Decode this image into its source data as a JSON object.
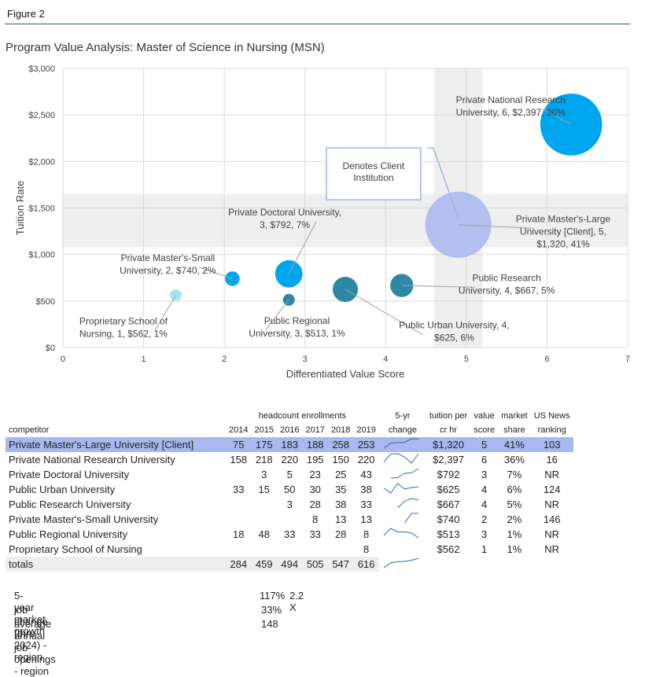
{
  "figure_label": "Figure 2",
  "chart_title": "Program Value Analysis:  Master of Science in Nursing (MSN)",
  "chart_data": {
    "type": "bubble",
    "xlabel": "Differentiated Value Score",
    "ylabel": "Tuition Rate",
    "xlim": [
      0,
      7
    ],
    "ylim": [
      0,
      3000
    ],
    "x_ticks": [
      "0",
      "1",
      "2",
      "3",
      "4",
      "5",
      "6",
      "7"
    ],
    "y_ticks": [
      "$0",
      "$500",
      "$1,000",
      "$1,500",
      "$2,000",
      "$2,500",
      "$3,000"
    ],
    "grid": true,
    "highlight_band_x": [
      4.6,
      5.2
    ],
    "highlight_band_y": [
      1080,
      1650
    ],
    "points": [
      {
        "name": "Private National Research University",
        "x": 6.3,
        "y": 2397,
        "size": 36,
        "color": "#00a5ef",
        "label": [
          "Private National Research",
          "University, 6, $2,397, 36%"
        ],
        "label_x": 5.55,
        "label_y": 2630,
        "anchor": "middle"
      },
      {
        "name": "Private Master's-Large University [Client]",
        "x": 4.9,
        "y": 1320,
        "size": 41,
        "color": "#a7b6ee",
        "label": [
          "Private Master's-Large",
          "University [Client], 5,",
          "$1,320, 41%"
        ],
        "label_x": 6.2,
        "label_y": 1350,
        "anchor": "middle"
      },
      {
        "name": "Private Doctoral University",
        "x": 2.8,
        "y": 792,
        "size": 7,
        "color": "#00a5ef",
        "label": [
          "Private Doctoral University,",
          "3, $792, 7%"
        ],
        "label_x": 2.75,
        "label_y": 1420,
        "anchor": "middle"
      },
      {
        "name": "Private Master's-Small University",
        "x": 2.1,
        "y": 740,
        "size": 2,
        "color": "#00a5ef",
        "label": [
          "Private Master's-Small",
          "University, 2, $740, 2%"
        ],
        "label_x": 1.3,
        "label_y": 930,
        "anchor": "middle"
      },
      {
        "name": "Proprietary School of Nursing",
        "x": 1.4,
        "y": 562,
        "size": 1,
        "color": "#a6e6f0",
        "label": [
          "Proprietary School of",
          "Nursing, 1, $562, 1%"
        ],
        "label_x": 0.75,
        "label_y": 250,
        "anchor": "middle"
      },
      {
        "name": "Public Regional University",
        "x": 2.8,
        "y": 513,
        "size": 1,
        "color": "#2d88a6",
        "label": [
          "Public Regional",
          "University, 3, $513, 1%"
        ],
        "label_x": 2.9,
        "label_y": 255,
        "anchor": "middle"
      },
      {
        "name": "Public Urban University",
        "x": 3.5,
        "y": 625,
        "size": 6,
        "color": "#2d88a6",
        "label": [
          "Public Urban University, 4,",
          "$625, 6%"
        ],
        "label_x": 4.85,
        "label_y": 205,
        "anchor": "middle"
      },
      {
        "name": "Public Research University",
        "x": 4.2,
        "y": 667,
        "size": 5,
        "color": "#2d88a6",
        "label": [
          "Public Research",
          "University, 4, $667, 5%"
        ],
        "label_x": 5.5,
        "label_y": 715,
        "anchor": "middle"
      }
    ],
    "callout": {
      "text": [
        "Denotes Client",
        "Institution"
      ],
      "x": 3.85,
      "y": 1850
    }
  },
  "table": {
    "group_header": "headcount enrollments",
    "headers": {
      "competitor": "competitor",
      "years": [
        "2014",
        "2015",
        "2016",
        "2017",
        "2018",
        "2019"
      ],
      "change_top": "5-yr",
      "change_bot": "change",
      "tuition_top": "tuition per",
      "tuition_bot": "cr hr",
      "value_top": "value",
      "value_bot": "score",
      "share_top": "market",
      "share_bot": "share",
      "rank_top": "US News",
      "rank_bot": "ranking"
    },
    "rows": [
      {
        "name": "Private Master's-Large University [Client]",
        "years": [
          "75",
          "175",
          "183",
          "188",
          "258",
          "253"
        ],
        "trend": [
          75,
          175,
          183,
          188,
          258,
          253
        ],
        "tuition": "$1,320",
        "value": "5",
        "share": "41%",
        "rank": "103"
      },
      {
        "name": "Private National Research University",
        "years": [
          "158",
          "218",
          "220",
          "195",
          "150",
          "220"
        ],
        "trend": [
          158,
          218,
          220,
          195,
          150,
          220
        ],
        "tuition": "$2,397",
        "value": "6",
        "share": "36%",
        "rank": "16"
      },
      {
        "name": "Private Doctoral University",
        "years": [
          "",
          "3",
          "5",
          "23",
          "25",
          "43"
        ],
        "trend": [
          null,
          3,
          5,
          23,
          25,
          43
        ],
        "tuition": "$792",
        "value": "3",
        "share": "7%",
        "rank": "NR"
      },
      {
        "name": "Public Urban University",
        "years": [
          "33",
          "15",
          "50",
          "30",
          "35",
          "38"
        ],
        "trend": [
          33,
          15,
          50,
          30,
          35,
          38
        ],
        "tuition": "$625",
        "value": "4",
        "share": "6%",
        "rank": "124"
      },
      {
        "name": "Public Research University",
        "years": [
          "",
          "",
          "3",
          "28",
          "38",
          "33"
        ],
        "trend": [
          null,
          null,
          3,
          28,
          38,
          33
        ],
        "tuition": "$667",
        "value": "4",
        "share": "5%",
        "rank": "NR"
      },
      {
        "name": "Private Master's-Small University",
        "years": [
          "",
          "",
          "",
          "8",
          "13",
          "13"
        ],
        "trend": [
          null,
          null,
          null,
          8,
          13,
          13
        ],
        "tuition": "$740",
        "value": "2",
        "share": "2%",
        "rank": "146"
      },
      {
        "name": "Public Regional University",
        "years": [
          "18",
          "48",
          "33",
          "33",
          "28",
          "8"
        ],
        "trend": [
          18,
          48,
          33,
          33,
          28,
          8
        ],
        "tuition": "$513",
        "value": "3",
        "share": "1%",
        "rank": "NR"
      },
      {
        "name": "Proprietary School of Nursing",
        "years": [
          "",
          "",
          "",
          "",
          "",
          "8"
        ],
        "trend": [],
        "tuition": "$562",
        "value": "1",
        "share": "1%",
        "rank": "NR"
      }
    ],
    "totals": {
      "name": "totals",
      "years": [
        "284",
        "459",
        "494",
        "505",
        "547",
        "616"
      ],
      "trend": [
        284,
        459,
        494,
        505,
        547,
        616
      ]
    }
  },
  "growth": {
    "market_growth_label": "5- year market growth",
    "market_growth_value": "117%",
    "market_growth_multiple": "2.2 X",
    "job_change_label": "job change (thru 2024) - region",
    "job_change_value": "33%",
    "openings_label": "average annual job openings - region",
    "openings_value": "148"
  },
  "colors": {
    "client_highlight": "#a9b8ef",
    "band": "#efefef",
    "accent_blue": "#00a5ef",
    "teal": "#2d88a6"
  }
}
